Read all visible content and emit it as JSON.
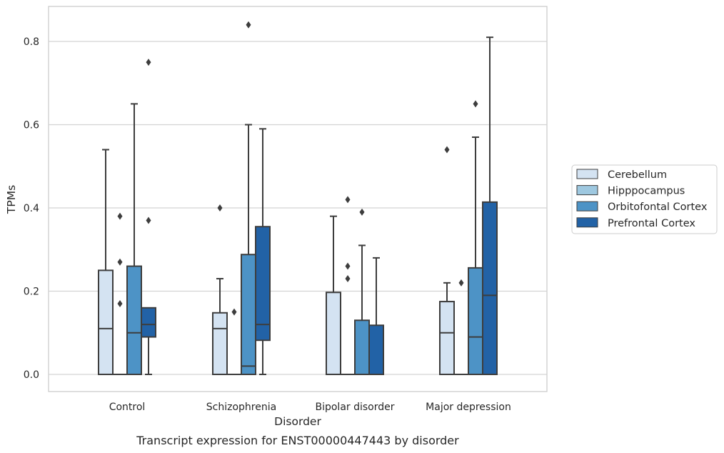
{
  "caption": "Transcript expression for ENST00000447443 by disorder",
  "chart_data": {
    "type": "box",
    "title": "",
    "xlabel": "Disorder",
    "ylabel": "TPMs",
    "ylim": [
      -0.04,
      0.885
    ],
    "yticks": [
      0.0,
      0.2,
      0.4,
      0.6,
      0.8
    ],
    "ytick_labels": [
      "0.0",
      "0.2",
      "0.4",
      "0.6",
      "0.8"
    ],
    "grid": "horizontal",
    "legend_position": "right",
    "categories": [
      "Control",
      "Schizophrenia",
      "Bipolar disorder",
      "Major depression"
    ],
    "series": [
      {
        "name": "Cerebellum",
        "color": "#d4e3f2",
        "boxes": [
          {
            "q1": 0.0,
            "median": 0.11,
            "q3": 0.25,
            "whisker_low": 0.0,
            "whisker_high": 0.54,
            "outliers": []
          },
          {
            "q1": 0.0,
            "median": 0.11,
            "q3": 0.148,
            "whisker_low": 0.0,
            "whisker_high": 0.23,
            "outliers": [
              0.4
            ]
          },
          {
            "q1": 0.0,
            "median": 0.0,
            "q3": 0.197,
            "whisker_low": 0.0,
            "whisker_high": 0.38,
            "outliers": []
          },
          {
            "q1": 0.0,
            "median": 0.1,
            "q3": 0.175,
            "whisker_low": 0.0,
            "whisker_high": 0.22,
            "outliers": [
              0.54
            ]
          }
        ]
      },
      {
        "name": "Hipppocampus",
        "color": "#9ec8e0",
        "boxes": [
          {
            "q1": 0.0,
            "median": 0.0,
            "q3": 0.0,
            "whisker_low": 0.0,
            "whisker_high": 0.0,
            "outliers": [
              0.17,
              0.27,
              0.38
            ]
          },
          {
            "q1": 0.0,
            "median": 0.0,
            "q3": 0.0,
            "whisker_low": 0.0,
            "whisker_high": 0.0,
            "outliers": [
              0.15
            ]
          },
          {
            "q1": 0.0,
            "median": 0.0,
            "q3": 0.0,
            "whisker_low": 0.0,
            "whisker_high": 0.0,
            "outliers": [
              0.23,
              0.26,
              0.42
            ]
          },
          {
            "q1": 0.0,
            "median": 0.0,
            "q3": 0.0,
            "whisker_low": 0.0,
            "whisker_high": 0.0,
            "outliers": [
              0.22
            ]
          }
        ]
      },
      {
        "name": "Orbitofontal Cortex",
        "color": "#4d93c6",
        "boxes": [
          {
            "q1": 0.0,
            "median": 0.1,
            "q3": 0.26,
            "whisker_low": 0.0,
            "whisker_high": 0.65,
            "outliers": []
          },
          {
            "q1": 0.0,
            "median": 0.02,
            "q3": 0.288,
            "whisker_low": 0.0,
            "whisker_high": 0.6,
            "outliers": [
              0.84
            ]
          },
          {
            "q1": 0.0,
            "median": 0.0,
            "q3": 0.13,
            "whisker_low": 0.0,
            "whisker_high": 0.31,
            "outliers": [
              0.39
            ]
          },
          {
            "q1": 0.0,
            "median": 0.09,
            "q3": 0.256,
            "whisker_low": 0.0,
            "whisker_high": 0.57,
            "outliers": [
              0.65
            ]
          }
        ]
      },
      {
        "name": "Prefrontal Cortex",
        "color": "#2262a6",
        "boxes": [
          {
            "q1": 0.09,
            "median": 0.12,
            "q3": 0.16,
            "whisker_low": 0.0,
            "whisker_high": 0.16,
            "outliers": [
              0.37,
              0.75
            ]
          },
          {
            "q1": 0.082,
            "median": 0.12,
            "q3": 0.355,
            "whisker_low": 0.0,
            "whisker_high": 0.59,
            "outliers": []
          },
          {
            "q1": 0.0,
            "median": 0.0,
            "q3": 0.118,
            "whisker_low": 0.0,
            "whisker_high": 0.28,
            "outliers": []
          },
          {
            "q1": 0.0,
            "median": 0.19,
            "q3": 0.414,
            "whisker_low": 0.0,
            "whisker_high": 0.81,
            "outliers": []
          }
        ]
      }
    ]
  }
}
